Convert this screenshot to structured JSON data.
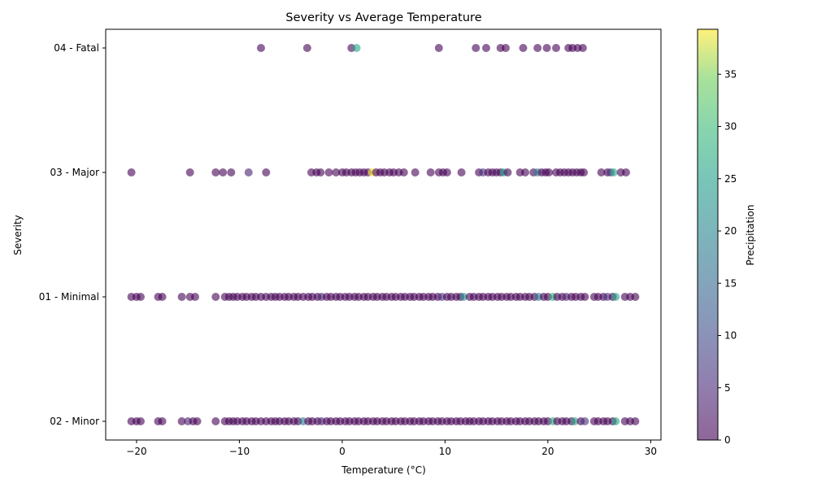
{
  "chart_data": {
    "type": "scatter",
    "title": "Severity vs Average Temperature",
    "xlabel": "Temperature (°C)",
    "ylabel": "Severity",
    "xlim": [
      -23,
      31
    ],
    "x_ticks": [
      -20,
      -10,
      0,
      10,
      20,
      30
    ],
    "categories": [
      "02 - Minor",
      "01 - Minimal",
      "03 - Major",
      "04 - Fatal"
    ],
    "colorbar": {
      "label": "Precipitation",
      "range": [
        0,
        39.3
      ],
      "ticks": [
        0,
        5,
        10,
        15,
        20,
        25,
        30,
        35
      ],
      "colormap": "viridis",
      "alpha": 0.6
    },
    "grid": false,
    "legend": "none",
    "series": [
      {
        "severity": "04 - Fatal",
        "points": [
          [
            -7.9,
            0
          ],
          [
            -3.4,
            0
          ],
          [
            0.9,
            0
          ],
          [
            1.4,
            26
          ],
          [
            9.4,
            0
          ],
          [
            13.0,
            0
          ],
          [
            14.0,
            0
          ],
          [
            15.4,
            0
          ],
          [
            15.9,
            0
          ],
          [
            17.6,
            0
          ],
          [
            19.0,
            0
          ],
          [
            19.9,
            0
          ],
          [
            20.8,
            0
          ],
          [
            22.0,
            0
          ],
          [
            22.4,
            0
          ],
          [
            22.9,
            0
          ],
          [
            23.4,
            0
          ]
        ]
      },
      {
        "severity": "03 - Major",
        "points": [
          [
            -20.5,
            0
          ],
          [
            -14.8,
            0
          ],
          [
            -12.3,
            0
          ],
          [
            -11.6,
            0
          ],
          [
            -10.8,
            0
          ],
          [
            -9.1,
            4
          ],
          [
            -7.4,
            0
          ],
          [
            -3.0,
            0
          ],
          [
            -2.5,
            0
          ],
          [
            -2.1,
            0
          ],
          [
            -1.3,
            0
          ],
          [
            -0.6,
            0
          ],
          [
            0.0,
            0
          ],
          [
            0.4,
            0
          ],
          [
            0.9,
            0
          ],
          [
            1.3,
            0
          ],
          [
            1.7,
            0
          ],
          [
            2.1,
            0
          ],
          [
            2.5,
            0
          ],
          [
            2.9,
            39
          ],
          [
            3.3,
            0
          ],
          [
            3.7,
            0
          ],
          [
            4.1,
            0
          ],
          [
            4.6,
            0
          ],
          [
            5.0,
            0
          ],
          [
            5.5,
            0
          ],
          [
            6.0,
            0
          ],
          [
            7.1,
            0
          ],
          [
            8.6,
            0
          ],
          [
            9.4,
            0
          ],
          [
            9.8,
            0
          ],
          [
            10.2,
            0
          ],
          [
            11.6,
            0
          ],
          [
            13.3,
            0
          ],
          [
            13.7,
            6
          ],
          [
            14.2,
            0
          ],
          [
            14.6,
            0
          ],
          [
            15.0,
            0
          ],
          [
            15.4,
            0
          ],
          [
            15.7,
            25
          ],
          [
            16.1,
            0
          ],
          [
            17.3,
            0
          ],
          [
            17.8,
            0
          ],
          [
            18.6,
            0
          ],
          [
            19.0,
            18
          ],
          [
            19.4,
            0
          ],
          [
            19.8,
            0
          ],
          [
            20.1,
            0
          ],
          [
            20.8,
            0
          ],
          [
            21.2,
            0
          ],
          [
            21.6,
            0
          ],
          [
            22.0,
            0
          ],
          [
            22.4,
            0
          ],
          [
            22.8,
            0
          ],
          [
            23.2,
            0
          ],
          [
            23.5,
            0
          ],
          [
            25.2,
            0
          ],
          [
            25.8,
            0
          ],
          [
            26.1,
            6
          ],
          [
            26.4,
            26
          ],
          [
            27.1,
            0
          ],
          [
            27.6,
            0
          ]
        ]
      },
      {
        "severity": "01 - Minimal",
        "points": [
          [
            -20.5,
            0
          ],
          [
            -20.0,
            0
          ],
          [
            -19.6,
            0
          ],
          [
            -17.9,
            0
          ],
          [
            -17.5,
            0
          ],
          [
            -15.6,
            0
          ],
          [
            -14.8,
            0
          ],
          [
            -14.3,
            0
          ],
          [
            -12.3,
            0
          ],
          [
            -11.4,
            0
          ],
          [
            -11.0,
            0
          ],
          [
            -10.6,
            0
          ],
          [
            -10.2,
            0
          ],
          [
            -9.7,
            0
          ],
          [
            -9.3,
            0
          ],
          [
            -8.8,
            0
          ],
          [
            -8.4,
            0
          ],
          [
            -7.9,
            0
          ],
          [
            -7.4,
            0
          ],
          [
            -6.9,
            0
          ],
          [
            -6.5,
            0
          ],
          [
            -6.1,
            0
          ],
          [
            -5.6,
            0
          ],
          [
            -5.2,
            0
          ],
          [
            -4.7,
            0
          ],
          [
            -4.3,
            0
          ],
          [
            -3.8,
            0
          ],
          [
            -3.3,
            0
          ],
          [
            -2.9,
            0
          ],
          [
            -2.4,
            0
          ],
          [
            -2.0,
            4
          ],
          [
            -1.5,
            0
          ],
          [
            -1.1,
            0
          ],
          [
            -0.6,
            0
          ],
          [
            -0.2,
            0
          ],
          [
            0.3,
            0
          ],
          [
            0.7,
            0
          ],
          [
            1.2,
            0
          ],
          [
            1.6,
            0
          ],
          [
            2.1,
            0
          ],
          [
            2.5,
            0
          ],
          [
            3.0,
            0
          ],
          [
            3.4,
            0
          ],
          [
            3.9,
            0
          ],
          [
            4.3,
            0
          ],
          [
            4.8,
            0
          ],
          [
            5.2,
            0
          ],
          [
            5.7,
            0
          ],
          [
            6.1,
            0
          ],
          [
            6.6,
            0
          ],
          [
            7.0,
            0
          ],
          [
            7.5,
            0
          ],
          [
            7.9,
            0
          ],
          [
            8.4,
            0
          ],
          [
            8.8,
            0
          ],
          [
            9.3,
            0
          ],
          [
            9.7,
            6
          ],
          [
            10.2,
            0
          ],
          [
            10.6,
            0
          ],
          [
            11.1,
            0
          ],
          [
            11.5,
            0
          ],
          [
            11.8,
            22
          ],
          [
            12.4,
            0
          ],
          [
            12.8,
            0
          ],
          [
            13.3,
            0
          ],
          [
            13.7,
            0
          ],
          [
            14.2,
            0
          ],
          [
            14.6,
            0
          ],
          [
            15.1,
            0
          ],
          [
            15.5,
            0
          ],
          [
            16.0,
            0
          ],
          [
            16.4,
            0
          ],
          [
            16.9,
            0
          ],
          [
            17.3,
            0
          ],
          [
            17.8,
            0
          ],
          [
            18.2,
            0
          ],
          [
            18.7,
            0
          ],
          [
            19.1,
            18
          ],
          [
            19.6,
            0
          ],
          [
            20.0,
            0
          ],
          [
            20.5,
            27
          ],
          [
            20.9,
            0
          ],
          [
            21.4,
            0
          ],
          [
            21.8,
            4
          ],
          [
            22.3,
            0
          ],
          [
            22.7,
            0
          ],
          [
            23.2,
            0
          ],
          [
            23.6,
            0
          ],
          [
            24.5,
            0
          ],
          [
            24.9,
            0
          ],
          [
            25.4,
            0
          ],
          [
            25.8,
            6
          ],
          [
            26.3,
            0
          ],
          [
            26.6,
            26
          ],
          [
            27.5,
            0
          ],
          [
            28.0,
            0
          ],
          [
            28.5,
            0
          ]
        ]
      },
      {
        "severity": "02 - Minor",
        "points": [
          [
            -20.5,
            0
          ],
          [
            -20.0,
            0
          ],
          [
            -19.6,
            0
          ],
          [
            -17.9,
            0
          ],
          [
            -17.5,
            0
          ],
          [
            -15.6,
            0
          ],
          [
            -15.0,
            4
          ],
          [
            -14.5,
            0
          ],
          [
            -14.1,
            0
          ],
          [
            -12.3,
            0
          ],
          [
            -11.4,
            0
          ],
          [
            -11.0,
            0
          ],
          [
            -10.6,
            0
          ],
          [
            -10.2,
            0
          ],
          [
            -9.7,
            0
          ],
          [
            -9.3,
            0
          ],
          [
            -8.8,
            0
          ],
          [
            -8.4,
            0
          ],
          [
            -7.9,
            0
          ],
          [
            -7.4,
            0
          ],
          [
            -6.9,
            0
          ],
          [
            -6.5,
            0
          ],
          [
            -6.1,
            0
          ],
          [
            -5.6,
            0
          ],
          [
            -5.2,
            0
          ],
          [
            -4.7,
            0
          ],
          [
            -4.3,
            0
          ],
          [
            -3.8,
            18
          ],
          [
            -3.3,
            0
          ],
          [
            -2.9,
            0
          ],
          [
            -2.4,
            0
          ],
          [
            -2.0,
            4
          ],
          [
            -1.5,
            0
          ],
          [
            -1.1,
            0
          ],
          [
            -0.6,
            0
          ],
          [
            -0.2,
            0
          ],
          [
            0.3,
            0
          ],
          [
            0.7,
            0
          ],
          [
            1.2,
            0
          ],
          [
            1.6,
            0
          ],
          [
            2.1,
            0
          ],
          [
            2.5,
            0
          ],
          [
            3.0,
            0
          ],
          [
            3.4,
            0
          ],
          [
            3.9,
            0
          ],
          [
            4.3,
            0
          ],
          [
            4.8,
            0
          ],
          [
            5.2,
            0
          ],
          [
            5.7,
            0
          ],
          [
            6.1,
            0
          ],
          [
            6.6,
            0
          ],
          [
            7.0,
            0
          ],
          [
            7.5,
            0
          ],
          [
            7.9,
            0
          ],
          [
            8.4,
            0
          ],
          [
            8.8,
            0
          ],
          [
            9.3,
            0
          ],
          [
            9.7,
            0
          ],
          [
            10.2,
            0
          ],
          [
            10.6,
            0
          ],
          [
            11.1,
            0
          ],
          [
            11.5,
            0
          ],
          [
            12.0,
            0
          ],
          [
            12.4,
            0
          ],
          [
            12.8,
            0
          ],
          [
            13.3,
            0
          ],
          [
            13.7,
            0
          ],
          [
            14.2,
            0
          ],
          [
            14.6,
            0
          ],
          [
            15.1,
            0
          ],
          [
            15.5,
            0
          ],
          [
            16.0,
            0
          ],
          [
            16.4,
            0
          ],
          [
            16.9,
            0
          ],
          [
            17.3,
            0
          ],
          [
            17.8,
            0
          ],
          [
            18.2,
            0
          ],
          [
            18.7,
            0
          ],
          [
            19.1,
            0
          ],
          [
            19.6,
            0
          ],
          [
            20.0,
            0
          ],
          [
            20.5,
            27
          ],
          [
            20.9,
            0
          ],
          [
            21.4,
            0
          ],
          [
            21.8,
            0
          ],
          [
            22.3,
            0
          ],
          [
            22.6,
            26
          ],
          [
            23.2,
            0
          ],
          [
            23.6,
            6
          ],
          [
            24.5,
            0
          ],
          [
            24.9,
            0
          ],
          [
            25.4,
            0
          ],
          [
            25.8,
            0
          ],
          [
            26.3,
            0
          ],
          [
            26.6,
            26
          ],
          [
            27.5,
            0
          ],
          [
            28.0,
            0
          ],
          [
            28.5,
            0
          ]
        ]
      }
    ]
  }
}
